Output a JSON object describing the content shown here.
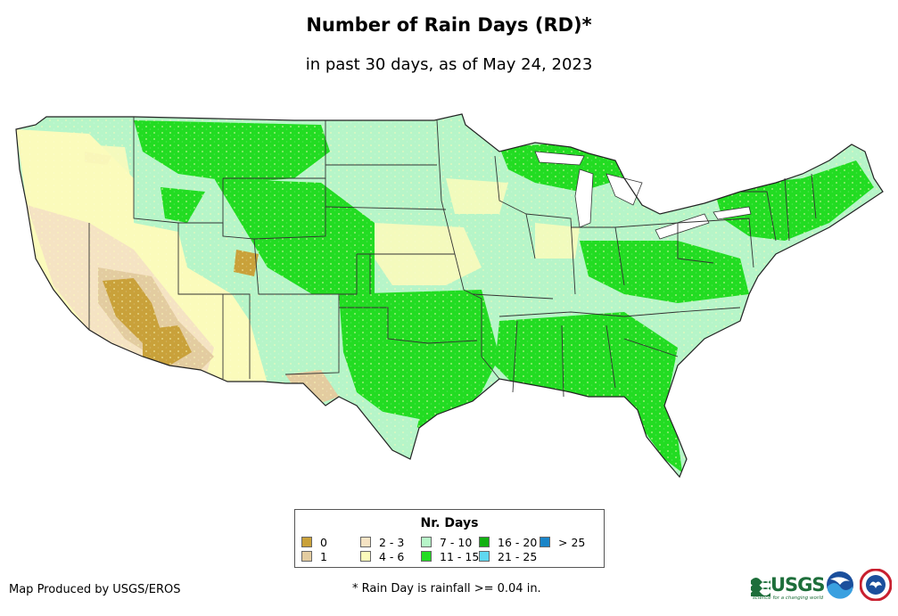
{
  "title": "Number of Rain Days (RD)*",
  "subtitle": "in past 30 days, as of May 24, 2023",
  "legend": {
    "title": "Nr. Days",
    "items": [
      {
        "label": "0",
        "color": "#c9a13a"
      },
      {
        "label": "1",
        "color": "#e3cca0"
      },
      {
        "label": "2 - 3",
        "color": "#f5e3c3"
      },
      {
        "label": "4 - 6",
        "color": "#fbfbbb"
      },
      {
        "label": "7 - 10",
        "color": "#b6f5c8"
      },
      {
        "label": "11 - 15",
        "color": "#22dc22"
      },
      {
        "label": "16 - 20",
        "color": "#12b012"
      },
      {
        "label": "21 - 25",
        "color": "#5fd8f0"
      },
      {
        "label": "> 25",
        "color": "#1a85c8"
      }
    ]
  },
  "credit": "Map Produced by USGS/EROS",
  "footnote": "* Rain Day is rainfall >= 0.04 in.",
  "logos": {
    "usgs": "USGS",
    "usgs_tagline": "science for a changing world",
    "noaa_icon": "noaa-logo-icon",
    "nws_icon": "nws-logo-icon"
  }
}
